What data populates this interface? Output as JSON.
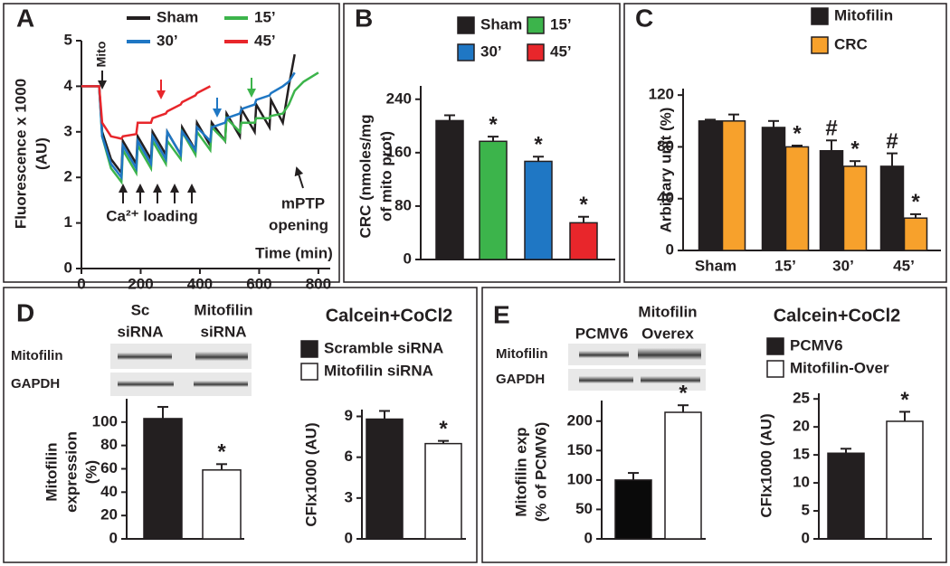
{
  "chart_data": [
    {
      "type": "line",
      "panel": "A",
      "ylabel": [
        "Fluorescence x 1000",
        "(AU)"
      ],
      "xlabel": "Time (min)",
      "annotations": [
        "Mito",
        "Ca²⁺ loading",
        "mPTP",
        "opening"
      ],
      "x": [
        0,
        60,
        70,
        100,
        135,
        140,
        185,
        190,
        235,
        240,
        285,
        290,
        335,
        340,
        385,
        390,
        435,
        440,
        485,
        490,
        535,
        540,
        585,
        590,
        635,
        640,
        680,
        700,
        720,
        750,
        800
      ],
      "xlim": [
        0,
        840
      ],
      "xticks": [
        0,
        200,
        400,
        600,
        800
      ],
      "ylim": [
        0,
        5
      ],
      "yticks": [
        0,
        1,
        2,
        3,
        4,
        5
      ],
      "series": [
        {
          "name": "Sham",
          "color": "#231f20",
          "values": [
            4.0,
            4.0,
            3.0,
            2.4,
            2.1,
            2.8,
            2.3,
            2.9,
            2.4,
            3.0,
            2.5,
            3.0,
            2.5,
            3.1,
            2.6,
            3.2,
            2.7,
            3.2,
            2.8,
            3.4,
            2.9,
            3.5,
            3.0,
            3.6,
            3.1,
            3.7,
            3.2,
            4.0,
            4.7,
            null,
            null
          ]
        },
        {
          "name": "15’",
          "color": "#3cb44b",
          "values": [
            4.0,
            4.0,
            2.9,
            2.2,
            1.9,
            2.6,
            2.1,
            2.7,
            2.2,
            2.8,
            2.3,
            2.8,
            2.4,
            3.0,
            2.5,
            3.0,
            2.6,
            3.1,
            2.8,
            3.3,
            3.0,
            3.2,
            3.2,
            3.3,
            3.3,
            3.35,
            3.4,
            3.6,
            3.9,
            4.1,
            4.3
          ]
        },
        {
          "name": "30’",
          "color": "#1f77c4",
          "values": [
            4.0,
            4.0,
            2.9,
            2.3,
            2.0,
            2.7,
            2.2,
            2.8,
            2.3,
            2.9,
            2.4,
            3.0,
            2.5,
            3.0,
            2.6,
            3.1,
            2.8,
            3.1,
            3.2,
            3.3,
            3.4,
            3.5,
            3.6,
            3.7,
            3.8,
            3.85,
            4.0,
            4.1,
            4.3,
            null,
            null
          ]
        },
        {
          "name": "45’",
          "color": "#e8262b",
          "values": [
            4.0,
            4.0,
            3.2,
            2.9,
            2.85,
            2.9,
            2.95,
            3.2,
            3.2,
            3.3,
            3.4,
            3.45,
            3.6,
            3.65,
            3.8,
            3.85,
            4.0,
            null,
            null,
            null,
            null,
            null,
            null,
            null,
            null,
            null,
            null,
            null,
            null,
            null,
            null
          ]
        }
      ]
    },
    {
      "type": "bar",
      "panel": "B",
      "ylabel": [
        "CRC (nmoles/mg",
        "of mito prot)"
      ],
      "ylim": [
        0,
        260
      ],
      "yticks": [
        0,
        80,
        160,
        240
      ],
      "series": [
        {
          "name": "Sham",
          "color": "#231f20",
          "values": [
            208
          ],
          "errors": [
            8
          ]
        },
        {
          "name": "15’",
          "color": "#3cb44b",
          "values": [
            177
          ],
          "errors": [
            7
          ],
          "significance": [
            "*"
          ]
        },
        {
          "name": "30’",
          "color": "#1f77c4",
          "values": [
            147
          ],
          "errors": [
            7
          ],
          "significance": [
            "*"
          ]
        },
        {
          "name": "45’",
          "color": "#e8262b",
          "values": [
            55
          ],
          "errors": [
            9
          ],
          "significance": [
            "*"
          ]
        }
      ]
    },
    {
      "type": "bar",
      "panel": "C",
      "ylabel": [
        "Arbitrary unit (%)"
      ],
      "categories": [
        "Sham",
        "15’",
        "30’",
        "45’"
      ],
      "ylim": [
        0,
        125
      ],
      "yticks": [
        0,
        40,
        80,
        120
      ],
      "series": [
        {
          "name": "Mitofilin",
          "color": "#231f20",
          "values": [
            100,
            95,
            77,
            65
          ],
          "errors": [
            1,
            5,
            8,
            10
          ],
          "significance": [
            null,
            null,
            "#",
            "#"
          ]
        },
        {
          "name": "CRC",
          "color": "#f7a12c",
          "values": [
            100,
            80,
            65,
            25
          ],
          "errors": [
            5,
            1,
            4,
            3
          ],
          "significance": [
            null,
            "*",
            "*",
            "*"
          ]
        }
      ]
    },
    {
      "type": "bar",
      "panel": "D",
      "blot": {
        "lanes": [
          [
            "Sc",
            "siRNA"
          ],
          [
            "Mitofilin",
            "siRNA"
          ]
        ],
        "rows": [
          "Mitofilin",
          "GAPDH"
        ]
      },
      "ylabel": [
        "Mitofilin",
        "expression",
        "(%)"
      ],
      "ylim": [
        0,
        120
      ],
      "yticks": [
        0,
        20,
        40,
        60,
        80,
        100
      ],
      "series": [
        {
          "color": "#231f20",
          "values": [
            103
          ],
          "errors": [
            10
          ]
        },
        {
          "color": "#ffffff",
          "values": [
            59
          ],
          "errors": [
            5
          ],
          "significance": [
            "*"
          ]
        }
      ]
    },
    {
      "type": "bar",
      "heading": "Calcein+CoCl2",
      "ylabel": [
        "CFIx1000 (AU)"
      ],
      "ylim": [
        0,
        9.5
      ],
      "yticks": [
        0,
        3,
        6,
        9
      ],
      "series": [
        {
          "name": "Scramble siRNA",
          "color": "#231f20",
          "values": [
            8.8
          ],
          "errors": [
            0.6
          ]
        },
        {
          "name": "Mitofilin siRNA",
          "color": "#ffffff",
          "values": [
            7.0
          ],
          "errors": [
            0.2
          ],
          "significance": [
            "*"
          ]
        }
      ]
    },
    {
      "type": "bar",
      "panel": "E",
      "blot": {
        "lanes": [
          [
            "PCMV6"
          ],
          [
            "Mitofilin",
            "Overex"
          ]
        ],
        "rows": [
          "Mitofilin",
          "GAPDH"
        ]
      },
      "ylabel": [
        "Mitofilin exp",
        "(% of PCMV6)"
      ],
      "ylim": [
        0,
        235
      ],
      "yticks": [
        0,
        50,
        100,
        150,
        200
      ],
      "series": [
        {
          "color": "#0a0a0a",
          "values": [
            100
          ],
          "errors": [
            12
          ]
        },
        {
          "color": "#ffffff",
          "values": [
            215
          ],
          "errors": [
            12
          ],
          "significance": [
            "*"
          ]
        }
      ]
    },
    {
      "type": "bar",
      "heading": "Calcein+CoCl2",
      "ylabel": [
        "CFIx1000 (AU)"
      ],
      "ylim": [
        0,
        26
      ],
      "yticks": [
        0,
        5,
        10,
        15,
        20,
        25
      ],
      "series": [
        {
          "name": "PCMV6",
          "color": "#231f20",
          "values": [
            15.3
          ],
          "errors": [
            0.8
          ]
        },
        {
          "name": "Mitofilin-Over",
          "color": "#ffffff",
          "values": [
            21
          ],
          "errors": [
            1.7
          ],
          "significance": [
            "*"
          ]
        }
      ]
    }
  ]
}
